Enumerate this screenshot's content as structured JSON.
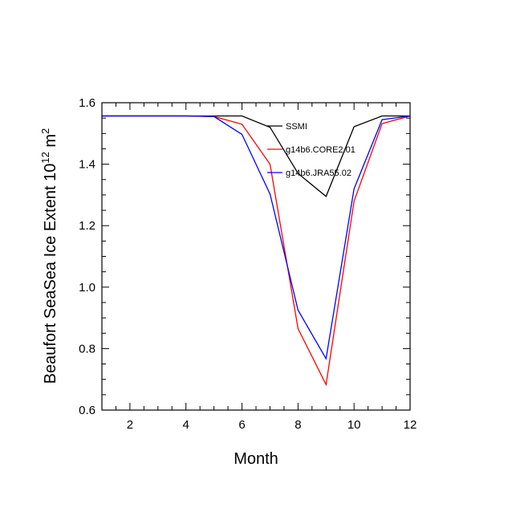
{
  "chart_data": {
    "type": "line",
    "title": "",
    "xlabel": "Month",
    "ylabel_main": "Beaufort SeaSea Ice Extent 10",
    "ylabel_exp1": "12",
    "ylabel_unit": " m",
    "ylabel_exp2": "2",
    "xlim": [
      1,
      12
    ],
    "ylim": [
      0.6,
      1.6
    ],
    "x": [
      1,
      2,
      3,
      4,
      5,
      6,
      7,
      8,
      9,
      10,
      11,
      12
    ],
    "xticks": [
      2,
      4,
      6,
      8,
      10,
      12
    ],
    "yticks": [
      0.6,
      0.8,
      1.0,
      1.2,
      1.4,
      1.6
    ],
    "ytick_labels": [
      "0.6",
      "0.8",
      "1.0",
      "1.2",
      "1.4",
      "1.6"
    ],
    "legend_position": "top-right",
    "series": [
      {
        "name": "SSMI",
        "color": "#000000",
        "values": [
          1.557,
          1.557,
          1.557,
          1.557,
          1.557,
          1.557,
          1.52,
          1.37,
          1.295,
          1.522,
          1.557,
          1.557
        ]
      },
      {
        "name": "g14b6.CORE2.01",
        "color": "#ff0000",
        "values": [
          1.557,
          1.557,
          1.557,
          1.557,
          1.555,
          1.53,
          1.4,
          0.865,
          0.683,
          1.28,
          1.532,
          1.557
        ]
      },
      {
        "name": "g14b6.JRA55.02",
        "color": "#0000ff",
        "values": [
          1.557,
          1.557,
          1.557,
          1.557,
          1.555,
          1.497,
          1.303,
          0.925,
          0.767,
          1.32,
          1.545,
          1.557
        ]
      }
    ]
  }
}
